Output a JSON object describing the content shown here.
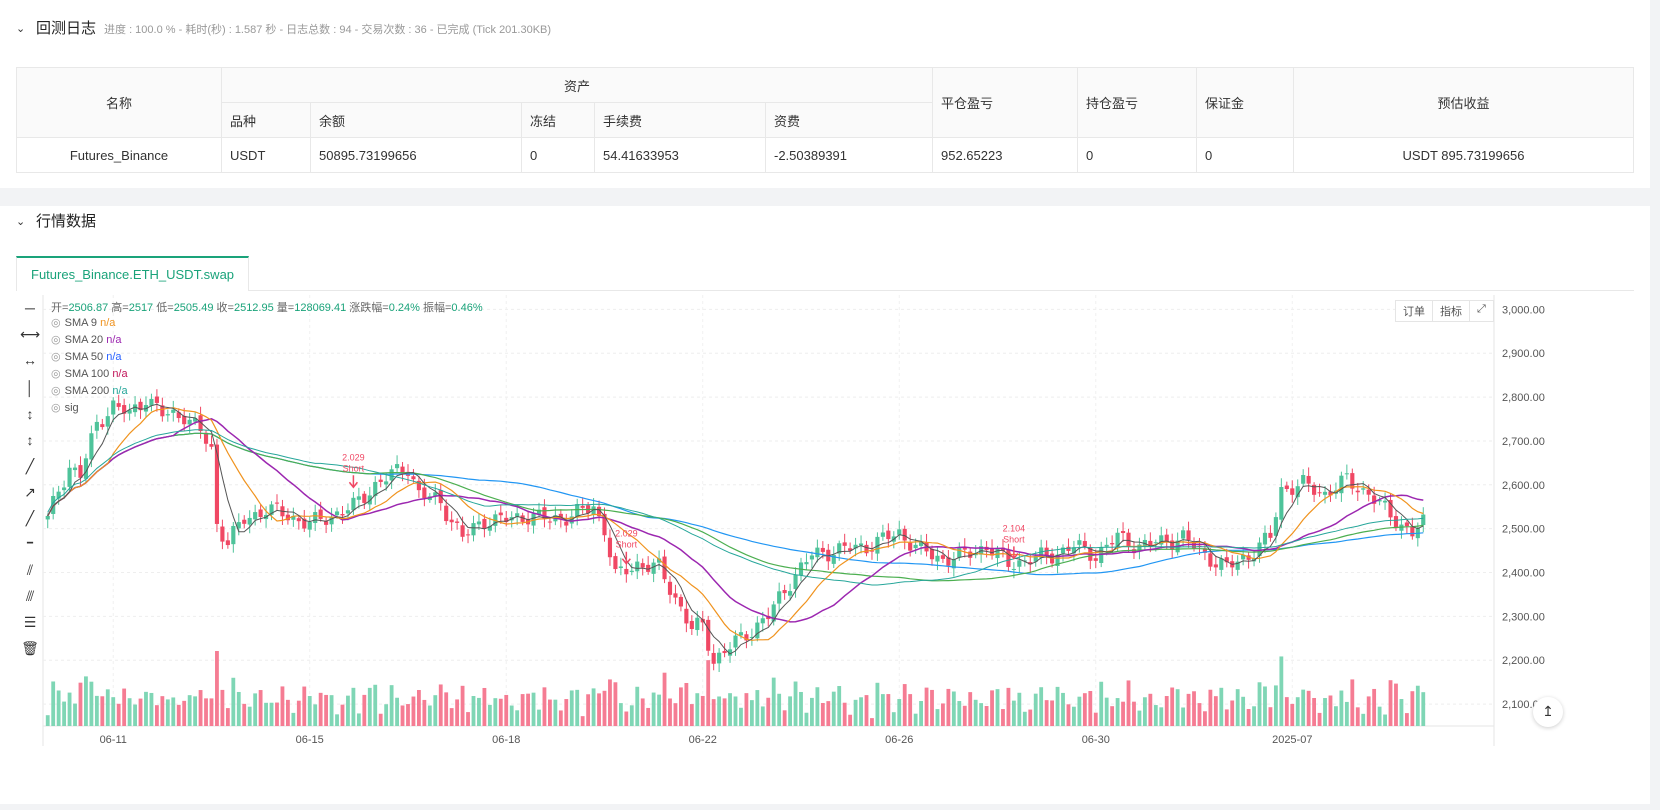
{
  "log": {
    "title": "回测日志",
    "subtitle": "进度 : 100.0 % - 耗时(秒) : 1.587 秒 - 日志总数 : 94 - 交易次数 : 36 - 已完成 (Tick 201.30KB)"
  },
  "assets_table": {
    "headers": {
      "name": "名称",
      "assets": "资产",
      "symbol": "品种",
      "balance": "余额",
      "frozen": "冻结",
      "fee": "手续费",
      "funding": "资费",
      "closed_pnl": "平仓盈亏",
      "position_pnl": "持仓盈亏",
      "margin": "保证金",
      "est_profit": "预估收益"
    },
    "row": {
      "name": "Futures_Binance",
      "symbol": "USDT",
      "balance": "50895.73199656",
      "frozen": "0",
      "fee": "54.41633953",
      "funding": "-2.50389391",
      "closed_pnl": "952.65223",
      "position_pnl": "0",
      "margin": "0",
      "est_profit": "USDT 895.73199656"
    }
  },
  "market": {
    "title": "行情数据",
    "tab": "Futures_Binance.ETH_USDT.swap"
  },
  "ohlc": {
    "open_label": "开=",
    "open": "2506.87",
    "high_label": "高=",
    "high": "2517",
    "low_label": "低=",
    "low": "2505.49",
    "close_label": "收=",
    "close": "2512.95",
    "vol_label": "量=",
    "vol": "128069.41",
    "chg_label": "涨跌幅=",
    "chg": "0.24%",
    "amp_label": "振幅=",
    "amp": "0.46%"
  },
  "legend": [
    {
      "name": "SMA 9",
      "value": "n/a",
      "color": "#f0931e"
    },
    {
      "name": "SMA 20",
      "value": "n/a",
      "color": "#9c27b0"
    },
    {
      "name": "SMA 50",
      "value": "n/a",
      "color": "#2962ff"
    },
    {
      "name": "SMA 100",
      "value": "n/a",
      "color": "#c2185b"
    },
    {
      "name": "SMA 200",
      "value": "n/a",
      "color": "#26a69a"
    },
    {
      "name": "sig",
      "value": "",
      "color": "#555"
    }
  ],
  "buttons": {
    "order": "订单",
    "indicator": "指标",
    "expand_icon": "expand-icon",
    "reset_icon": "reset-axis-icon"
  },
  "toolbar_icons": [
    "horizontal-line-icon",
    "horizontal-ray-icon",
    "horizontal-segment-icon",
    "vertical-line-icon",
    "vertical-ray-icon",
    "vertical-segment-icon",
    "trend-line-icon",
    "ray-line-icon",
    "segment-line-icon",
    "price-label-icon",
    "parallel-channel-icon",
    "fib-lines-icon",
    "fibonacci-icon",
    "delete-icon"
  ],
  "chart_data": {
    "type": "candlestick",
    "y_ticks": [
      "3,000.00",
      "2,900.00",
      "2,800.00",
      "2,700.00",
      "2,600.00",
      "2,500.00",
      "2,400.00",
      "2,300.00",
      "2,200.00",
      "2,100.00"
    ],
    "ylim": [
      2050,
      3010
    ],
    "x_ticks": [
      {
        "label": "06-11",
        "idx": 12
      },
      {
        "label": "06-15",
        "idx": 48
      },
      {
        "label": "06-18",
        "idx": 84
      },
      {
        "label": "06-22",
        "idx": 120
      },
      {
        "label": "06-26",
        "idx": 156
      },
      {
        "label": "06-30",
        "idx": 192
      },
      {
        "label": "2025-07",
        "idx": 228
      }
    ],
    "colors": {
      "up": "#4ec39a",
      "down": "#f04864",
      "sma_gray": "#555555",
      "sma_orange": "#f0931e",
      "sma_purple": "#9c27b0",
      "sma_green": "#4caf50",
      "sma_blue": "#2196f3",
      "teal": "#26a69a",
      "signal": "#f04864"
    },
    "close_anchors": [
      [
        0,
        2520
      ],
      [
        2,
        2590
      ],
      [
        4,
        2640
      ],
      [
        6,
        2620
      ],
      [
        9,
        2740
      ],
      [
        12,
        2780
      ],
      [
        15,
        2760
      ],
      [
        18,
        2800
      ],
      [
        21,
        2760
      ],
      [
        25,
        2760
      ],
      [
        28,
        2720
      ],
      [
        30,
        2680
      ],
      [
        31,
        2510
      ],
      [
        33,
        2470
      ],
      [
        36,
        2520
      ],
      [
        40,
        2545
      ],
      [
        44,
        2530
      ],
      [
        48,
        2510
      ],
      [
        52,
        2530
      ],
      [
        56,
        2550
      ],
      [
        60,
        2600
      ],
      [
        64,
        2630
      ],
      [
        66,
        2640
      ],
      [
        68,
        2580
      ],
      [
        72,
        2560
      ],
      [
        76,
        2480
      ],
      [
        80,
        2520
      ],
      [
        84,
        2520
      ],
      [
        88,
        2530
      ],
      [
        92,
        2520
      ],
      [
        96,
        2530
      ],
      [
        100,
        2550
      ],
      [
        102,
        2500
      ],
      [
        104,
        2390
      ],
      [
        108,
        2420
      ],
      [
        112,
        2410
      ],
      [
        116,
        2320
      ],
      [
        118,
        2270
      ],
      [
        120,
        2280
      ],
      [
        122,
        2200
      ],
      [
        124,
        2220
      ],
      [
        128,
        2260
      ],
      [
        132,
        2300
      ],
      [
        136,
        2380
      ],
      [
        140,
        2440
      ],
      [
        144,
        2450
      ],
      [
        150,
        2460
      ],
      [
        156,
        2490
      ],
      [
        160,
        2450
      ],
      [
        164,
        2430
      ],
      [
        168,
        2440
      ],
      [
        172,
        2460
      ],
      [
        176,
        2420
      ],
      [
        180,
        2430
      ],
      [
        184,
        2440
      ],
      [
        188,
        2460
      ],
      [
        192,
        2440
      ],
      [
        196,
        2480
      ],
      [
        200,
        2460
      ],
      [
        204,
        2470
      ],
      [
        208,
        2480
      ],
      [
        212,
        2440
      ],
      [
        216,
        2410
      ],
      [
        220,
        2440
      ],
      [
        224,
        2480
      ],
      [
        226,
        2590
      ],
      [
        230,
        2600
      ],
      [
        234,
        2580
      ],
      [
        238,
        2610
      ],
      [
        242,
        2580
      ],
      [
        246,
        2530
      ],
      [
        250,
        2490
      ],
      [
        252,
        2512
      ]
    ],
    "signals": [
      {
        "idx": 56,
        "price_label": "2.029",
        "text": "Short"
      },
      {
        "idx": 106,
        "price_label": "2.029",
        "text": "Short"
      },
      {
        "idx": 177,
        "price_label": "2.104",
        "text": "Short"
      }
    ]
  }
}
